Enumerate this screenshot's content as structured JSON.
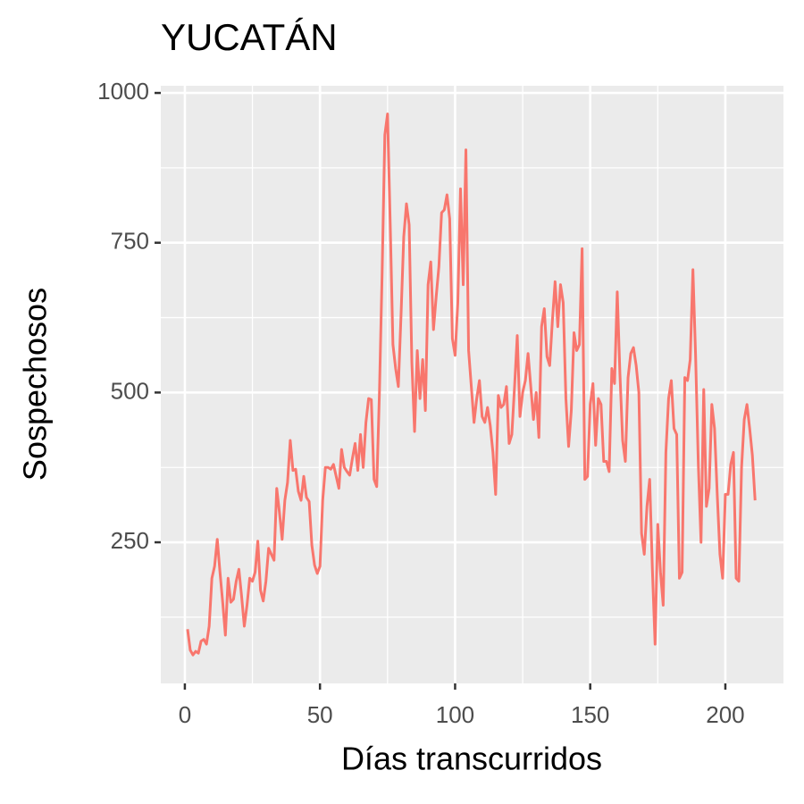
{
  "chart_data": {
    "type": "line",
    "title": "YUCATÁN",
    "x_label": "Días transcurridos",
    "y_label": "Sospechosos",
    "x": [
      1,
      2,
      3,
      4,
      5,
      6,
      7,
      8,
      9,
      10,
      11,
      12,
      13,
      14,
      15,
      16,
      17,
      18,
      19,
      20,
      21,
      22,
      23,
      24,
      25,
      26,
      27,
      28,
      29,
      30,
      31,
      32,
      33,
      34,
      35,
      36,
      37,
      38,
      39,
      40,
      41,
      42,
      43,
      44,
      45,
      46,
      47,
      48,
      49,
      50,
      51,
      52,
      53,
      54,
      55,
      56,
      57,
      58,
      59,
      60,
      61,
      62,
      63,
      64,
      65,
      66,
      67,
      68,
      69,
      70,
      71,
      72,
      73,
      74,
      75,
      76,
      77,
      78,
      79,
      80,
      81,
      82,
      83,
      84,
      85,
      86,
      87,
      88,
      89,
      90,
      91,
      92,
      93,
      94,
      95,
      96,
      97,
      98,
      99,
      100,
      101,
      102,
      103,
      104,
      105,
      106,
      107,
      108,
      109,
      110,
      111,
      112,
      113,
      114,
      115,
      116,
      117,
      118,
      119,
      120,
      121,
      122,
      123,
      124,
      125,
      126,
      127,
      128,
      129,
      130,
      131,
      132,
      133,
      134,
      135,
      136,
      137,
      138,
      139,
      140,
      141,
      142,
      143,
      144,
      145,
      146,
      147,
      148,
      149,
      150,
      151,
      152,
      153,
      154,
      155,
      156,
      157,
      158,
      159,
      160,
      161,
      162,
      163,
      164,
      165,
      166,
      167,
      168,
      169,
      170,
      171,
      172,
      173,
      174,
      175,
      176,
      177,
      178,
      179,
      180,
      181,
      182,
      183,
      184,
      185,
      186,
      187,
      188,
      189,
      190,
      191,
      192,
      193,
      194,
      195,
      196,
      197,
      198,
      199,
      200,
      201,
      202,
      203,
      204,
      205,
      206,
      207,
      208,
      209,
      210,
      211
    ],
    "series": [
      {
        "color": "#F8766D",
        "values": [
          105,
          70,
          62,
          68,
          65,
          85,
          88,
          80,
          110,
          190,
          210,
          255,
          200,
          150,
          95,
          190,
          150,
          155,
          185,
          205,
          160,
          110,
          145,
          190,
          185,
          200,
          252,
          170,
          152,
          185,
          240,
          230,
          220,
          340,
          300,
          255,
          320,
          350,
          420,
          370,
          372,
          335,
          320,
          360,
          325,
          318,
          245,
          212,
          198,
          210,
          320,
          375,
          375,
          372,
          380,
          360,
          340,
          405,
          375,
          368,
          362,
          390,
          415,
          370,
          430,
          375,
          450,
          490,
          488,
          355,
          343,
          500,
          700,
          930,
          965,
          780,
          580,
          540,
          510,
          630,
          760,
          815,
          780,
          550,
          435,
          570,
          490,
          555,
          470,
          680,
          718,
          605,
          660,
          710,
          800,
          805,
          830,
          790,
          590,
          562,
          650,
          840,
          680,
          905,
          570,
          510,
          450,
          490,
          520,
          460,
          450,
          475,
          445,
          400,
          330,
          495,
          475,
          480,
          510,
          415,
          430,
          510,
          595,
          460,
          500,
          520,
          565,
          510,
          455,
          500,
          425,
          610,
          640,
          560,
          545,
          620,
          685,
          610,
          680,
          650,
          490,
          410,
          470,
          600,
          570,
          580,
          740,
          355,
          360,
          480,
          515,
          412,
          490,
          480,
          385,
          385,
          368,
          540,
          515,
          668,
          530,
          420,
          385,
          525,
          565,
          575,
          545,
          500,
          265,
          230,
          310,
          355,
          205,
          80,
          280,
          200,
          145,
          400,
          490,
          520,
          440,
          430,
          190,
          200,
          525,
          520,
          555,
          705,
          560,
          380,
          250,
          505,
          310,
          340,
          480,
          440,
          330,
          230,
          190,
          330,
          330,
          380,
          400,
          190,
          185,
          375,
          455,
          480,
          440,
          395,
          320
        ]
      }
    ],
    "xlim": [
      -8.9,
      221.5
    ],
    "ylim": [
      14.5,
      1012
    ],
    "xticks": [
      0,
      50,
      100,
      150,
      200
    ],
    "yticks": [
      250,
      500,
      750,
      1000
    ],
    "x_minor_ticks": [
      25,
      75,
      125,
      175
    ],
    "y_minor_ticks": [
      125,
      375,
      625,
      875
    ],
    "grid": true
  }
}
